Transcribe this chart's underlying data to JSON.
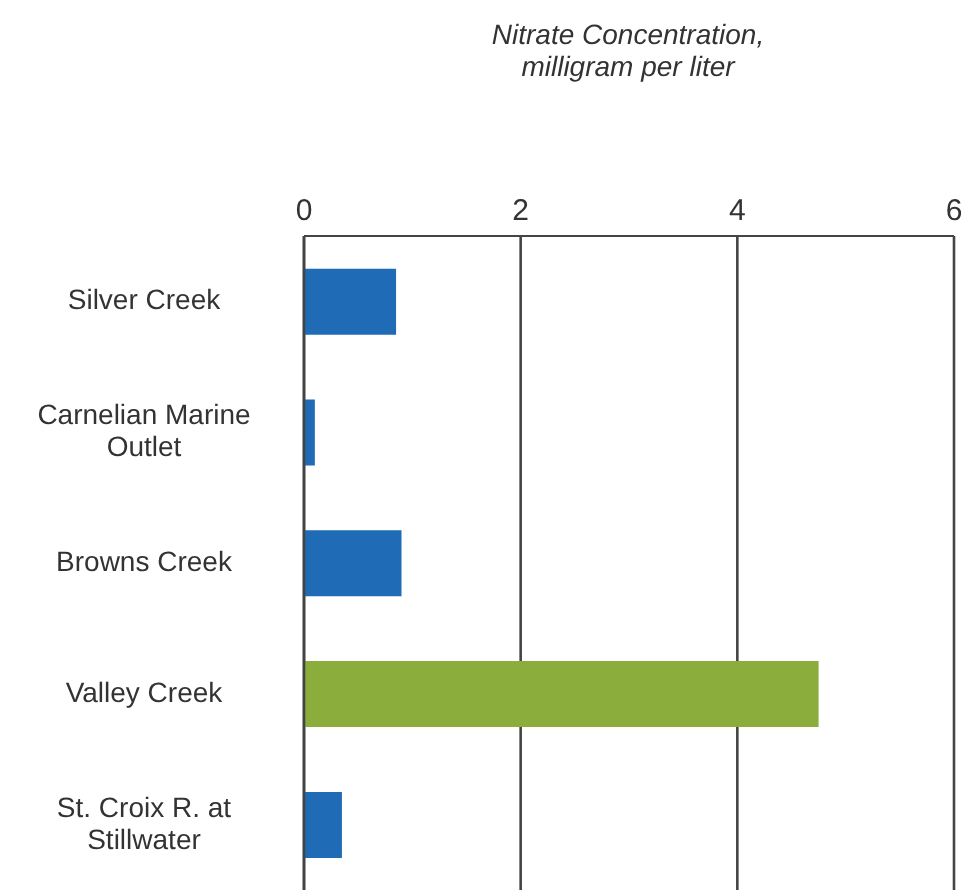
{
  "chart_data": {
    "type": "bar",
    "orientation": "horizontal",
    "xlabel": "Nitrate Concentration, milligram per liter",
    "categories": [
      "Silver Creek",
      "Carnelian Marine Outlet",
      "Browns Creek",
      "Valley Creek",
      "St. Croix R. at Stillwater"
    ],
    "values": [
      0.85,
      0.1,
      0.9,
      4.75,
      0.35
    ],
    "colors": [
      "#1f6bb5",
      "#1f6bb5",
      "#1f6bb5",
      "#8aad3b",
      "#1f6bb5"
    ],
    "xlim": [
      0,
      6
    ],
    "xticks": [
      0,
      2,
      4,
      6
    ],
    "grid": "x"
  }
}
